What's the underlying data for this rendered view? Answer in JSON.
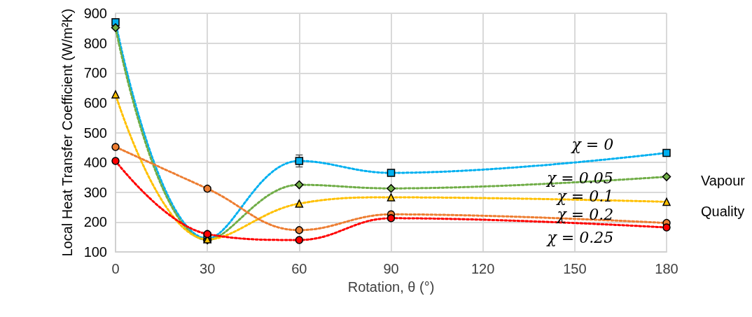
{
  "chart_data": {
    "type": "line",
    "xlabel": "Rotation, θ (°)",
    "ylabel": "Local Heat Transfer Coefficient (W/m²K)",
    "legend_title": "Vapour Quality",
    "x": [
      0,
      30,
      60,
      90,
      180
    ],
    "xlim": [
      0,
      180
    ],
    "xticks": [
      0,
      30,
      60,
      90,
      120,
      150,
      180
    ],
    "ylim": [
      100,
      900
    ],
    "yticks": [
      100,
      200,
      300,
      400,
      500,
      600,
      700,
      800,
      900
    ],
    "grid": true,
    "legend": false,
    "line_style": "dotted",
    "series": [
      {
        "name": "χ = 0",
        "color": "#00b0f0",
        "marker": "square",
        "values": [
          870,
          145,
          405,
          365,
          432
        ],
        "errors": [
          null,
          null,
          20,
          null,
          null
        ]
      },
      {
        "name": "χ = 0.05",
        "color": "#70ad47",
        "marker": "diamond",
        "values": [
          852,
          140,
          325,
          313,
          352
        ]
      },
      {
        "name": "χ = 0.1",
        "color": "#ffc000",
        "marker": "triangle",
        "values": [
          628,
          142,
          262,
          283,
          268
        ]
      },
      {
        "name": "χ = 0.2",
        "color": "#ed7d31",
        "marker": "circle",
        "values": [
          452,
          312,
          173,
          226,
          197
        ]
      },
      {
        "name": "χ = 0.25",
        "color": "#ff0000",
        "marker": "circle",
        "values": [
          405,
          160,
          140,
          213,
          182
        ]
      }
    ]
  }
}
